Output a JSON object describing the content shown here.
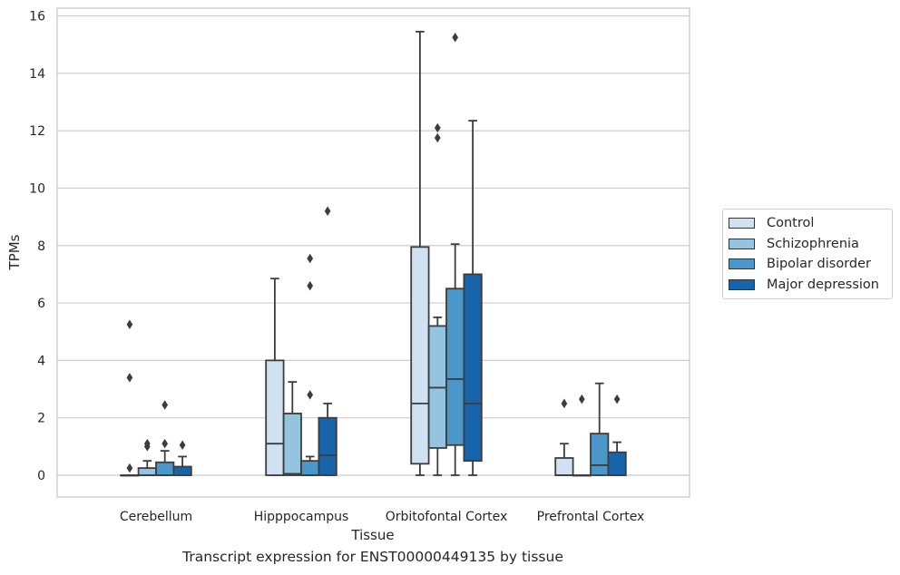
{
  "chart_data": {
    "type": "box",
    "title": "Transcript expression for ENST00000449135 by tissue",
    "xlabel": "Tissue",
    "ylabel": "TPMs",
    "ylim": [
      -0.75,
      16.25
    ],
    "yticks": [
      0,
      2,
      4,
      6,
      8,
      10,
      12,
      14,
      16
    ],
    "grid": true,
    "legend_position": "right",
    "categories": [
      "Cerebellum",
      "Hipppocampus",
      "Orbitofontal Cortex",
      "Prefrontal Cortex"
    ],
    "series": [
      {
        "name": "Control",
        "color": "#d0e1f2",
        "boxes": [
          {
            "whisker_low": 0,
            "q1": 0,
            "median": 0,
            "q3": 0,
            "whisker_high": 0,
            "outliers": [
              0.25,
              3.4,
              5.25
            ]
          },
          {
            "whisker_low": 0,
            "q1": 0,
            "median": 1.1,
            "q3": 4.0,
            "whisker_high": 6.85,
            "outliers": []
          },
          {
            "whisker_low": 0,
            "q1": 0.4,
            "median": 2.5,
            "q3": 7.95,
            "whisker_high": 15.45,
            "outliers": []
          },
          {
            "whisker_low": 0,
            "q1": 0,
            "median": 0,
            "q3": 0.6,
            "whisker_high": 1.1,
            "outliers": [
              2.5
            ]
          }
        ]
      },
      {
        "name": "Schizophrenia",
        "color": "#94c4df",
        "boxes": [
          {
            "whisker_low": 0,
            "q1": 0,
            "median": 0,
            "q3": 0.25,
            "whisker_high": 0.5,
            "outliers": [
              1.0,
              1.1
            ]
          },
          {
            "whisker_low": 0,
            "q1": 0,
            "median": 0.05,
            "q3": 2.15,
            "whisker_high": 3.25,
            "outliers": []
          },
          {
            "whisker_low": 0,
            "q1": 0.95,
            "median": 3.05,
            "q3": 5.2,
            "whisker_high": 5.5,
            "outliers": [
              11.75,
              12.1
            ]
          },
          {
            "whisker_low": 0,
            "q1": 0,
            "median": 0,
            "q3": 0,
            "whisker_high": 0,
            "outliers": [
              2.65
            ]
          }
        ]
      },
      {
        "name": "Bipolar disorder",
        "color": "#4a98c9",
        "boxes": [
          {
            "whisker_low": 0,
            "q1": 0,
            "median": 0,
            "q3": 0.45,
            "whisker_high": 0.85,
            "outliers": [
              1.1,
              2.45
            ]
          },
          {
            "whisker_low": 0,
            "q1": 0,
            "median": 0,
            "q3": 0.5,
            "whisker_high": 0.65,
            "outliers": [
              2.8,
              6.6,
              7.55
            ]
          },
          {
            "whisker_low": 0,
            "q1": 1.05,
            "median": 3.35,
            "q3": 6.5,
            "whisker_high": 8.05,
            "outliers": [
              15.25
            ]
          },
          {
            "whisker_low": 0,
            "q1": 0,
            "median": 0.35,
            "q3": 1.45,
            "whisker_high": 3.2,
            "outliers": []
          }
        ]
      },
      {
        "name": "Major depression",
        "color": "#1764ab",
        "boxes": [
          {
            "whisker_low": 0,
            "q1": 0,
            "median": 0,
            "q3": 0.3,
            "whisker_high": 0.65,
            "outliers": [
              1.05
            ]
          },
          {
            "whisker_low": 0,
            "q1": 0,
            "median": 0.7,
            "q3": 2.0,
            "whisker_high": 2.5,
            "outliers": [
              9.2
            ]
          },
          {
            "whisker_low": 0,
            "q1": 0.5,
            "median": 2.5,
            "q3": 7.0,
            "whisker_high": 12.35,
            "outliers": []
          },
          {
            "whisker_low": 0,
            "q1": 0,
            "median": 0,
            "q3": 0.8,
            "whisker_high": 1.15,
            "outliers": [
              2.65
            ]
          }
        ]
      }
    ]
  }
}
